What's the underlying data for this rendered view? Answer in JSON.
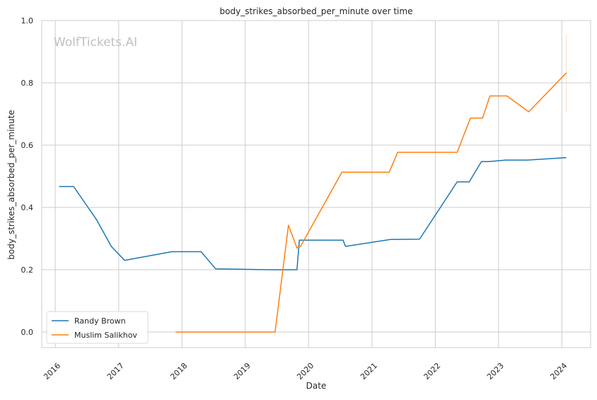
{
  "chart_data": {
    "type": "line",
    "title": "body_strikes_absorbed_per_minute over time",
    "xlabel": "Date",
    "ylabel": "body_strikes_absorbed_per_minute",
    "watermark": "WolfTickets.AI",
    "xlim": [
      "2015-10-15",
      "2024-06-15"
    ],
    "ylim": [
      -0.05,
      1.0
    ],
    "x_ticks": [
      "2016-01-01",
      "2017-01-01",
      "2018-01-01",
      "2019-01-01",
      "2020-01-01",
      "2021-01-01",
      "2022-01-01",
      "2023-01-01",
      "2024-01-01"
    ],
    "x_tick_labels": [
      "2016",
      "2017",
      "2018",
      "2019",
      "2020",
      "2021",
      "2022",
      "2023",
      "2024"
    ],
    "y_ticks": [
      0.0,
      0.2,
      0.4,
      0.6,
      0.8,
      1.0
    ],
    "y_tick_labels": [
      "0.0",
      "0.2",
      "0.4",
      "0.6",
      "0.8",
      "1.0"
    ],
    "grid": true,
    "legend_position": "lower-left",
    "series": [
      {
        "name": "Randy Brown",
        "color": "#1f77b4",
        "points": [
          [
            "2016-01-23",
            0.467
          ],
          [
            "2016-04-16",
            0.467
          ],
          [
            "2016-08-27",
            0.36
          ],
          [
            "2016-11-19",
            0.275
          ],
          [
            "2017-02-04",
            0.23
          ],
          [
            "2017-11-04",
            0.258
          ],
          [
            "2018-04-21",
            0.258
          ],
          [
            "2018-07-14",
            0.203
          ],
          [
            "2019-06-01",
            0.2
          ],
          [
            "2019-10-26",
            0.2
          ],
          [
            "2019-11-09",
            0.295
          ],
          [
            "2020-07-18",
            0.295
          ],
          [
            "2020-08-01",
            0.275
          ],
          [
            "2021-04-17",
            0.297
          ],
          [
            "2021-10-02",
            0.298
          ],
          [
            "2022-05-07",
            0.482
          ],
          [
            "2022-07-16",
            0.482
          ],
          [
            "2022-09-24",
            0.547
          ],
          [
            "2022-11-05",
            0.547
          ],
          [
            "2023-02-11",
            0.552
          ],
          [
            "2023-06-17",
            0.552
          ],
          [
            "2024-01-27",
            0.56
          ]
        ]
      },
      {
        "name": "Muslim Salikhov",
        "color": "#ff7f0e",
        "points": [
          [
            "2017-11-25",
            0.0
          ],
          [
            "2019-06-22",
            0.0
          ],
          [
            "2019-09-07",
            0.343
          ],
          [
            "2019-10-26",
            0.27
          ],
          [
            "2019-11-16",
            0.275
          ],
          [
            "2020-07-11",
            0.513
          ],
          [
            "2021-04-10",
            0.513
          ],
          [
            "2021-05-29",
            0.577
          ],
          [
            "2022-05-07",
            0.577
          ],
          [
            "2022-07-23",
            0.687
          ],
          [
            "2022-10-01",
            0.687
          ],
          [
            "2022-11-12",
            0.758
          ],
          [
            "2023-02-18",
            0.758
          ],
          [
            "2023-06-24",
            0.707
          ],
          [
            "2024-01-27",
            0.832
          ]
        ]
      }
    ],
    "error_bar": {
      "color": "#ff7f0e",
      "x": "2024-01-27",
      "y_low": 0.705,
      "y_high": 0.955
    }
  }
}
